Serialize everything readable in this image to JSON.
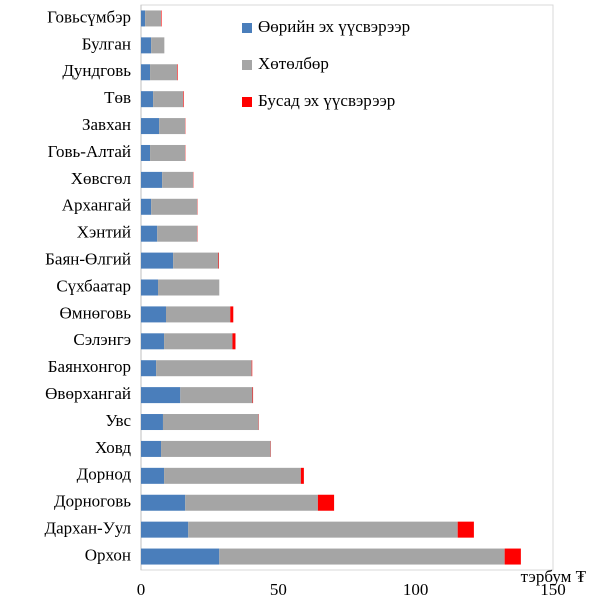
{
  "chart_data": {
    "type": "stacked_barh",
    "categories": [
      "Говьсүмбэр",
      "Булган",
      "Дундговь",
      "Төв",
      "Завхан",
      "Говь-Алтай",
      "Хөвсгөл",
      "Архангай",
      "Хэнтий",
      "Баян-Өлгий",
      "Сүхбаатар",
      "Өмнөговь",
      "Сэлэнгэ",
      "Баянхонгор",
      "Өвөрхангай",
      "Увс",
      "Ховд",
      "Дорнод",
      "Дорноговь",
      "Дархан-Уул",
      "Орхон"
    ],
    "series": [
      {
        "name": "Өөрийн эх үүсвэрээр",
        "color": "#4a7ebb",
        "values": [
          1.5,
          3.7,
          3.3,
          4.4,
          6.6,
          3.3,
          7.7,
          3.7,
          5.9,
          11.7,
          6.2,
          9.1,
          8.4,
          5.5,
          14.3,
          8.0,
          7.3,
          8.4,
          16.1,
          17.2,
          28.5
        ]
      },
      {
        "name": "Хөтөлбөр",
        "color": "#a5a5a5",
        "values": [
          5.8,
          4.8,
          9.9,
          11.0,
          9.5,
          12.8,
          11.3,
          16.8,
          14.6,
          16.5,
          22.3,
          23.4,
          24.9,
          34.8,
          26.3,
          34.8,
          39.9,
          49.8,
          48.3,
          98.1,
          103.9
        ]
      },
      {
        "name": "Бусад эх үүсвэрээр",
        "color": "#ff0000",
        "values": [
          0.2,
          0,
          0.2,
          0.2,
          0.1,
          0.1,
          0.1,
          0.1,
          0.1,
          0.2,
          0,
          1.1,
          1.1,
          0.2,
          0.2,
          0.1,
          0.1,
          1.1,
          5.9,
          5.9,
          5.9
        ]
      }
    ],
    "xlabel": "тэрбум ₮",
    "xlim": [
      0,
      150
    ],
    "xticks": [
      0,
      50,
      100,
      150
    ],
    "legend": "upper right"
  }
}
